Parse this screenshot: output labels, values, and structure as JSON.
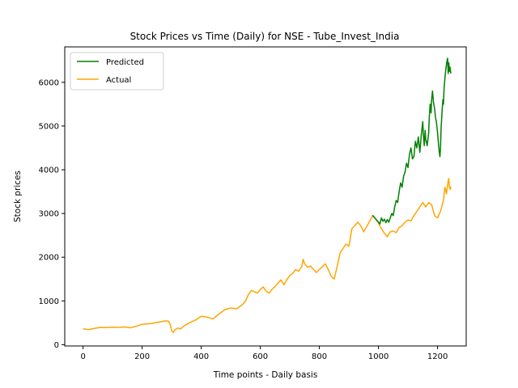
{
  "chart_data": {
    "type": "line",
    "title": "Stock Prices vs Time (Daily) for NSE - Tube_Invest_India",
    "xlabel": "Time points - Daily basis",
    "ylabel": "Stock prices",
    "xlim": [
      -62,
      1297
    ],
    "ylim": [
      -30,
      6810
    ],
    "xticks": [
      0,
      200,
      400,
      600,
      800,
      1000,
      1200
    ],
    "yticks": [
      0,
      1000,
      2000,
      3000,
      4000,
      5000,
      6000
    ],
    "grid": false,
    "legend_position": "top-left",
    "series": [
      {
        "name": "Predicted",
        "color": "#008000",
        "points": [
          [
            980,
            2960
          ],
          [
            990,
            2880
          ],
          [
            1000,
            2800
          ],
          [
            1005,
            2760
          ],
          [
            1010,
            2900
          ],
          [
            1015,
            2820
          ],
          [
            1020,
            2870
          ],
          [
            1025,
            2790
          ],
          [
            1030,
            2860
          ],
          [
            1035,
            2800
          ],
          [
            1040,
            2900
          ],
          [
            1045,
            3000
          ],
          [
            1050,
            2950
          ],
          [
            1055,
            3150
          ],
          [
            1060,
            3300
          ],
          [
            1065,
            3250
          ],
          [
            1070,
            3500
          ],
          [
            1075,
            3700
          ],
          [
            1080,
            3600
          ],
          [
            1085,
            3850
          ],
          [
            1090,
            3950
          ],
          [
            1095,
            4150
          ],
          [
            1100,
            4050
          ],
          [
            1105,
            4350
          ],
          [
            1110,
            4500
          ],
          [
            1115,
            4250
          ],
          [
            1120,
            4300
          ],
          [
            1125,
            4650
          ],
          [
            1130,
            4500
          ],
          [
            1135,
            4750
          ],
          [
            1140,
            4400
          ],
          [
            1145,
            4800
          ],
          [
            1150,
            5100
          ],
          [
            1152,
            4800
          ],
          [
            1155,
            4550
          ],
          [
            1158,
            4900
          ],
          [
            1160,
            4700
          ],
          [
            1165,
            4550
          ],
          [
            1170,
            4850
          ],
          [
            1172,
            5200
          ],
          [
            1175,
            5500
          ],
          [
            1178,
            5300
          ],
          [
            1180,
            5600
          ],
          [
            1183,
            5800
          ],
          [
            1186,
            5550
          ],
          [
            1190,
            5400
          ],
          [
            1193,
            5200
          ],
          [
            1196,
            5100
          ],
          [
            1200,
            4850
          ],
          [
            1203,
            4600
          ],
          [
            1206,
            4400
          ],
          [
            1208,
            4300
          ],
          [
            1210,
            4500
          ],
          [
            1212,
            4950
          ],
          [
            1215,
            5300
          ],
          [
            1218,
            5600
          ],
          [
            1220,
            5500
          ],
          [
            1222,
            5850
          ],
          [
            1225,
            6100
          ],
          [
            1228,
            6300
          ],
          [
            1231,
            6450
          ],
          [
            1234,
            6550
          ],
          [
            1236,
            6200
          ],
          [
            1238,
            6450
          ],
          [
            1240,
            6250
          ],
          [
            1242,
            6350
          ],
          [
            1245,
            6200
          ]
        ]
      },
      {
        "name": "Actual",
        "color": "#FFA500",
        "points": [
          [
            0,
            360
          ],
          [
            20,
            345
          ],
          [
            40,
            375
          ],
          [
            60,
            395
          ],
          [
            80,
            390
          ],
          [
            100,
            400
          ],
          [
            120,
            395
          ],
          [
            140,
            405
          ],
          [
            160,
            385
          ],
          [
            180,
            420
          ],
          [
            200,
            465
          ],
          [
            220,
            475
          ],
          [
            240,
            495
          ],
          [
            260,
            520
          ],
          [
            280,
            545
          ],
          [
            290,
            535
          ],
          [
            295,
            460
          ],
          [
            300,
            320
          ],
          [
            305,
            280
          ],
          [
            310,
            330
          ],
          [
            320,
            380
          ],
          [
            330,
            360
          ],
          [
            340,
            420
          ],
          [
            360,
            500
          ],
          [
            380,
            560
          ],
          [
            400,
            650
          ],
          [
            420,
            630
          ],
          [
            440,
            590
          ],
          [
            460,
            700
          ],
          [
            480,
            800
          ],
          [
            500,
            840
          ],
          [
            520,
            820
          ],
          [
            540,
            920
          ],
          [
            550,
            1000
          ],
          [
            560,
            1150
          ],
          [
            570,
            1240
          ],
          [
            580,
            1210
          ],
          [
            590,
            1180
          ],
          [
            600,
            1260
          ],
          [
            610,
            1320
          ],
          [
            620,
            1220
          ],
          [
            630,
            1180
          ],
          [
            640,
            1270
          ],
          [
            650,
            1330
          ],
          [
            660,
            1410
          ],
          [
            670,
            1480
          ],
          [
            680,
            1370
          ],
          [
            690,
            1490
          ],
          [
            700,
            1580
          ],
          [
            710,
            1630
          ],
          [
            720,
            1720
          ],
          [
            730,
            1680
          ],
          [
            740,
            1780
          ],
          [
            745,
            1950
          ],
          [
            750,
            1850
          ],
          [
            760,
            1770
          ],
          [
            770,
            1800
          ],
          [
            780,
            1720
          ],
          [
            790,
            1650
          ],
          [
            800,
            1720
          ],
          [
            810,
            1780
          ],
          [
            820,
            1850
          ],
          [
            830,
            1720
          ],
          [
            840,
            1560
          ],
          [
            850,
            1500
          ],
          [
            860,
            1780
          ],
          [
            870,
            2100
          ],
          [
            880,
            2200
          ],
          [
            890,
            2300
          ],
          [
            900,
            2250
          ],
          [
            910,
            2650
          ],
          [
            920,
            2720
          ],
          [
            930,
            2800
          ],
          [
            940,
            2720
          ],
          [
            950,
            2580
          ],
          [
            960,
            2700
          ],
          [
            970,
            2820
          ],
          [
            980,
            2950
          ],
          [
            990,
            2880
          ],
          [
            1000,
            2780
          ],
          [
            1010,
            2650
          ],
          [
            1020,
            2550
          ],
          [
            1030,
            2470
          ],
          [
            1040,
            2580
          ],
          [
            1050,
            2600
          ],
          [
            1060,
            2560
          ],
          [
            1070,
            2680
          ],
          [
            1080,
            2720
          ],
          [
            1090,
            2800
          ],
          [
            1100,
            2850
          ],
          [
            1110,
            2830
          ],
          [
            1120,
            2950
          ],
          [
            1130,
            3050
          ],
          [
            1140,
            3150
          ],
          [
            1150,
            3250
          ],
          [
            1160,
            3150
          ],
          [
            1170,
            3250
          ],
          [
            1180,
            3200
          ],
          [
            1190,
            2950
          ],
          [
            1200,
            2900
          ],
          [
            1210,
            3050
          ],
          [
            1220,
            3300
          ],
          [
            1225,
            3600
          ],
          [
            1230,
            3450
          ],
          [
            1235,
            3700
          ],
          [
            1238,
            3800
          ],
          [
            1240,
            3600
          ],
          [
            1243,
            3550
          ],
          [
            1245,
            3620
          ]
        ]
      }
    ]
  }
}
